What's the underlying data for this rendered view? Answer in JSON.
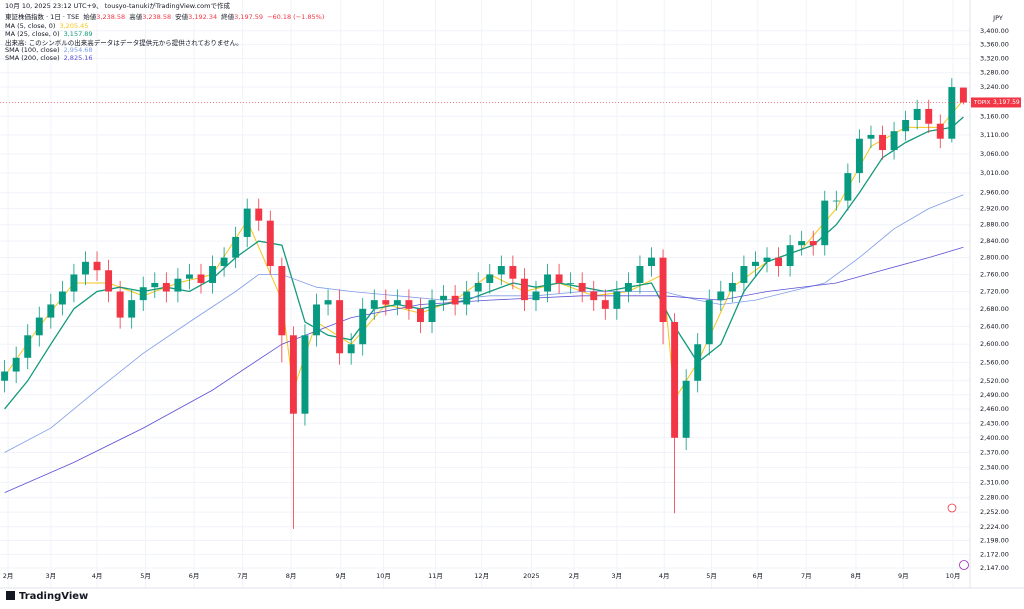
{
  "chart_data": {
    "type": "candlestick",
    "caption": "10月 10, 2025 23:12 UTC+9、 tousyo-tanukiがTradingView.comで作成",
    "symbol_line": "東証株価指数 · 1日 · TSE",
    "ohlc_header": [
      {
        "label": "始値",
        "value": "3,238.58"
      },
      {
        "label": "高値",
        "value": "3,238.58"
      },
      {
        "label": "安値",
        "value": "3,192.34"
      },
      {
        "label": "終値",
        "value": "3,197.59"
      }
    ],
    "change": "−60.18 (−1.85%)",
    "volume_note": "出来高: このシンボルの出来高データはデータ提供元から提供されておりません。",
    "currency": "JPY",
    "symbol": "TOPIX",
    "last_price": {
      "value": 3197.59,
      "label": "3,197.59"
    },
    "brand": "TradingView",
    "log_scale": true,
    "grid": true,
    "up_color": "#089981",
    "down_color": "#f23645",
    "xlim": [
      -0.4,
      83.4
    ],
    "xticks": [
      {
        "value": 0.3,
        "label": "2月"
      },
      {
        "value": 4.0,
        "label": "3月"
      },
      {
        "value": 8.0,
        "label": "4月"
      },
      {
        "value": 12.2,
        "label": "5月"
      },
      {
        "value": 16.4,
        "label": "6月"
      },
      {
        "value": 20.6,
        "label": "7月"
      },
      {
        "value": 24.8,
        "label": "8月"
      },
      {
        "value": 29.1,
        "label": "9月"
      },
      {
        "value": 32.8,
        "label": "10月"
      },
      {
        "value": 37.3,
        "label": "11月"
      },
      {
        "value": 41.3,
        "label": "12月"
      },
      {
        "value": 45.6,
        "label": "2025"
      },
      {
        "value": 49.3,
        "label": "2月"
      },
      {
        "value": 53.0,
        "label": "3月"
      },
      {
        "value": 57.1,
        "label": "4月"
      },
      {
        "value": 61.2,
        "label": "5月"
      },
      {
        "value": 65.2,
        "label": "6月"
      },
      {
        "value": 69.4,
        "label": "7月"
      },
      {
        "value": 73.7,
        "label": "8月"
      },
      {
        "value": 77.8,
        "label": "9月"
      },
      {
        "value": 82.1,
        "label": "10月"
      }
    ],
    "ylim": [
      2125,
      3455
    ],
    "yticks": [
      {
        "value": 3400,
        "label": "3,400.00"
      },
      {
        "value": 3360,
        "label": "3,360.00"
      },
      {
        "value": 3320,
        "label": "3,320.00"
      },
      {
        "value": 3280,
        "label": "3,280.00"
      },
      {
        "value": 3240,
        "label": "3,240.00"
      },
      {
        "value": 3160,
        "label": "3,160.00"
      },
      {
        "value": 3110,
        "label": "3,110.00"
      },
      {
        "value": 3060,
        "label": "3,060.00"
      },
      {
        "value": 3010,
        "label": "3,010.00"
      },
      {
        "value": 2960,
        "label": "2,960.00"
      },
      {
        "value": 2920,
        "label": "2,920.00"
      },
      {
        "value": 2880,
        "label": "2,880.00"
      },
      {
        "value": 2840,
        "label": "2,840.00"
      },
      {
        "value": 2800,
        "label": "2,800.00"
      },
      {
        "value": 2760,
        "label": "2,760.00"
      },
      {
        "value": 2720,
        "label": "2,720.00"
      },
      {
        "value": 2680,
        "label": "2,680.00"
      },
      {
        "value": 2640,
        "label": "2,640.00"
      },
      {
        "value": 2600,
        "label": "2,600.00"
      },
      {
        "value": 2560,
        "label": "2,560.00"
      },
      {
        "value": 2520,
        "label": "2,520.00"
      },
      {
        "value": 2490,
        "label": "2,490.00"
      },
      {
        "value": 2460,
        "label": "2,460.00"
      },
      {
        "value": 2430,
        "label": "2,430.00"
      },
      {
        "value": 2400,
        "label": "2,400.00"
      },
      {
        "value": 2370,
        "label": "2,370.00"
      },
      {
        "value": 2340,
        "label": "2,340.00"
      },
      {
        "value": 2310,
        "label": "2,310.00"
      },
      {
        "value": 2280,
        "label": "2,280.00"
      },
      {
        "value": 2252,
        "label": "2,252.00"
      },
      {
        "value": 2224,
        "label": "2,224.00"
      },
      {
        "value": 2198,
        "label": "2,198.00"
      },
      {
        "value": 2172,
        "label": "2,172.00"
      },
      {
        "value": 2147,
        "label": "2,147.00"
      }
    ],
    "open": [
      2520,
      2540,
      2570,
      2620,
      2660,
      2690,
      2720,
      2760,
      2790,
      2770,
      2720,
      2660,
      2700,
      2730,
      2740,
      2720,
      2750,
      2760,
      2740,
      2780,
      2800,
      2850,
      2920,
      2890,
      2780,
      2620,
      2450,
      2620,
      2690,
      2700,
      2580,
      2600,
      2680,
      2700,
      2690,
      2700,
      2680,
      2650,
      2700,
      2710,
      2690,
      2720,
      2740,
      2760,
      2780,
      2750,
      2700,
      2720,
      2760,
      2740,
      2740,
      2720,
      2700,
      2680,
      2720,
      2740,
      2780,
      2800,
      2650,
      2400,
      2520,
      2600,
      2700,
      2720,
      2740,
      2780,
      2790,
      2800,
      2780,
      2830,
      2840,
      2830,
      2940,
      2940,
      3010,
      3100,
      3110,
      3070,
      3120,
      3150,
      3180,
      3140,
      3100,
      3238.58
    ],
    "high": [
      2565,
      2595,
      2645,
      2685,
      2715,
      2745,
      2785,
      2815,
      2815,
      2795,
      2745,
      2725,
      2755,
      2765,
      2765,
      2775,
      2785,
      2785,
      2805,
      2825,
      2875,
      2945,
      2945,
      2915,
      2800,
      2640,
      2645,
      2715,
      2725,
      2725,
      2625,
      2705,
      2725,
      2725,
      2725,
      2725,
      2705,
      2725,
      2735,
      2735,
      2745,
      2765,
      2785,
      2805,
      2805,
      2775,
      2745,
      2785,
      2785,
      2765,
      2765,
      2745,
      2725,
      2745,
      2765,
      2805,
      2825,
      2820,
      2670,
      2545,
      2625,
      2725,
      2745,
      2765,
      2805,
      2815,
      2825,
      2825,
      2855,
      2865,
      2865,
      2965,
      2965,
      3035,
      3125,
      3135,
      3135,
      3145,
      3175,
      3205,
      3205,
      3165,
      3265,
      3238.58
    ],
    "low": [
      2495,
      2515,
      2545,
      2595,
      2635,
      2665,
      2695,
      2735,
      2745,
      2695,
      2635,
      2635,
      2675,
      2705,
      2695,
      2695,
      2725,
      2715,
      2715,
      2755,
      2775,
      2825,
      2865,
      2760,
      2560,
      2220,
      2425,
      2595,
      2665,
      2555,
      2555,
      2575,
      2655,
      2665,
      2665,
      2655,
      2625,
      2625,
      2675,
      2665,
      2665,
      2695,
      2715,
      2735,
      2725,
      2675,
      2675,
      2695,
      2715,
      2715,
      2695,
      2675,
      2655,
      2655,
      2695,
      2715,
      2755,
      2600,
      2250,
      2375,
      2495,
      2575,
      2675,
      2695,
      2715,
      2755,
      2765,
      2755,
      2755,
      2805,
      2805,
      2805,
      2915,
      2915,
      2985,
      3075,
      3045,
      3045,
      3095,
      3125,
      3115,
      3075,
      3090,
      3192.34
    ],
    "close": [
      2540,
      2570,
      2620,
      2660,
      2690,
      2720,
      2760,
      2790,
      2770,
      2720,
      2660,
      2700,
      2730,
      2740,
      2720,
      2750,
      2760,
      2740,
      2780,
      2800,
      2850,
      2920,
      2890,
      2780,
      2620,
      2450,
      2620,
      2690,
      2700,
      2580,
      2600,
      2680,
      2700,
      2690,
      2700,
      2680,
      2650,
      2700,
      2710,
      2690,
      2720,
      2740,
      2760,
      2780,
      2750,
      2700,
      2720,
      2760,
      2740,
      2740,
      2720,
      2700,
      2680,
      2720,
      2740,
      2780,
      2800,
      2650,
      2400,
      2520,
      2600,
      2700,
      2720,
      2740,
      2780,
      2790,
      2800,
      2780,
      2830,
      2840,
      2830,
      2940,
      2940,
      3010,
      3100,
      3110,
      3070,
      3120,
      3150,
      3180,
      3140,
      3100,
      3240,
      3197.59
    ],
    "series": [
      {
        "name": "MA (5, close, 0)",
        "last_label": "3,205.45",
        "color": "#f5c518",
        "x": [
          0,
          3,
          6,
          9,
          12,
          15,
          18,
          21,
          24,
          25,
          27,
          30,
          33,
          36,
          39,
          42,
          45,
          48,
          51,
          54,
          57,
          58,
          60,
          63,
          66,
          69,
          72,
          75,
          78,
          81,
          83
        ],
        "values": [
          2530,
          2640,
          2740,
          2740,
          2710,
          2740,
          2760,
          2890,
          2700,
          2500,
          2650,
          2600,
          2690,
          2670,
          2700,
          2760,
          2720,
          2740,
          2710,
          2720,
          2760,
          2480,
          2560,
          2730,
          2790,
          2820,
          2920,
          3080,
          3130,
          3130,
          3205
        ]
      },
      {
        "name": "MA (25, close, 0)",
        "last_label": "3,157.89",
        "color": "#12997a",
        "x": [
          0,
          2,
          4,
          6,
          8,
          10,
          12,
          14,
          16,
          18,
          20,
          22,
          24,
          26,
          28,
          30,
          32,
          34,
          36,
          38,
          40,
          42,
          44,
          46,
          48,
          50,
          52,
          54,
          56,
          58,
          60,
          62,
          64,
          66,
          68,
          70,
          72,
          74,
          76,
          78,
          80,
          82,
          83
        ],
        "values": [
          2460,
          2520,
          2600,
          2680,
          2720,
          2730,
          2720,
          2730,
          2720,
          2750,
          2800,
          2840,
          2830,
          2650,
          2620,
          2610,
          2680,
          2690,
          2680,
          2690,
          2700,
          2720,
          2740,
          2730,
          2740,
          2730,
          2720,
          2730,
          2740,
          2640,
          2560,
          2600,
          2720,
          2790,
          2810,
          2830,
          2880,
          2960,
          3050,
          3090,
          3120,
          3130,
          3158
        ]
      },
      {
        "name": "SMA (100, close)",
        "last_label": "2,954.68",
        "color": "#7e9ce8",
        "x": [
          0,
          4,
          8,
          12,
          16,
          20,
          22,
          24,
          27,
          30,
          34,
          38,
          42,
          46,
          50,
          54,
          57,
          60,
          62,
          65,
          68,
          71,
          74,
          77,
          80,
          83
        ],
        "values": [
          2370,
          2420,
          2500,
          2580,
          2650,
          2720,
          2760,
          2760,
          2730,
          2720,
          2710,
          2700,
          2710,
          2710,
          2720,
          2720,
          2720,
          2700,
          2690,
          2700,
          2720,
          2740,
          2800,
          2870,
          2920,
          2955
        ]
      },
      {
        "name": "SMA (200, close)",
        "last_label": "2,825.16",
        "color": "#5b4fd6",
        "x": [
          0,
          6,
          12,
          18,
          24,
          30,
          36,
          42,
          50,
          57,
          62,
          66,
          72,
          76,
          80,
          83
        ],
        "values": [
          2290,
          2350,
          2420,
          2500,
          2600,
          2660,
          2690,
          2700,
          2710,
          2710,
          2700,
          2720,
          2740,
          2770,
          2800,
          2825
        ]
      }
    ]
  }
}
